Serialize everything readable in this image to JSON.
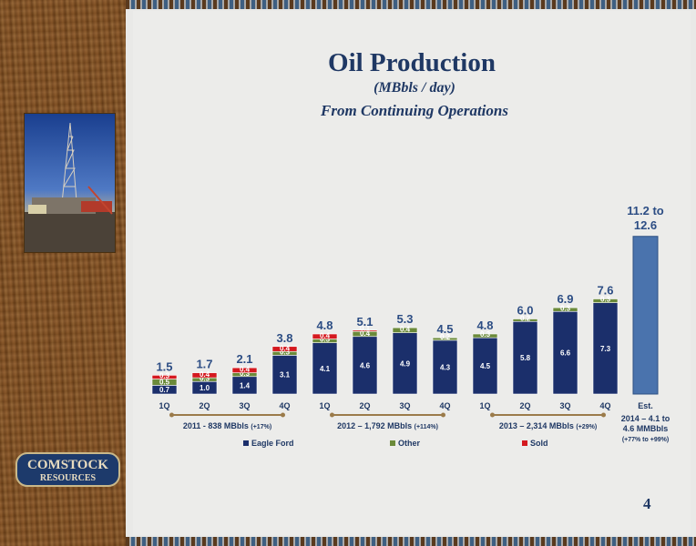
{
  "title": "Oil Production",
  "units": "(MBbls / day)",
  "subtitle": "From Continuing Operations",
  "page_number": "4",
  "logo_text": "COMSTOCK RESOURCES",
  "colors": {
    "eagle_ford": "#1b2f6b",
    "other": "#6b8a3a",
    "sold": "#d4191f",
    "estimate": "#4a73ad",
    "title": "#1f3864",
    "timeline": "#9b7b4a"
  },
  "chart_data": {
    "type": "bar",
    "stacked": true,
    "ylim": [
      0,
      13
    ],
    "categories": [
      "1Q",
      "2Q",
      "3Q",
      "4Q",
      "1Q",
      "2Q",
      "3Q",
      "4Q",
      "1Q",
      "2Q",
      "3Q",
      "4Q",
      "Est."
    ],
    "series": [
      {
        "name": "Eagle Ford",
        "values": [
          0.7,
          1.0,
          1.4,
          3.1,
          4.1,
          4.6,
          4.9,
          4.3,
          4.5,
          5.8,
          6.6,
          7.3,
          null
        ]
      },
      {
        "name": "Other",
        "values": [
          0.5,
          0.3,
          0.3,
          0.3,
          0.3,
          0.4,
          0.4,
          0.2,
          0.3,
          0.2,
          0.3,
          0.3,
          null
        ]
      },
      {
        "name": "Sold",
        "values": [
          0.3,
          0.4,
          0.4,
          0.4,
          0.4,
          0.1,
          null,
          null,
          null,
          null,
          null,
          null,
          null
        ]
      }
    ],
    "totals": [
      "1.5",
      "1.7",
      "2.1",
      "3.8",
      "4.8",
      "5.1",
      "5.3",
      "4.5",
      "4.8",
      "6.0",
      "6.9",
      "7.6",
      "11.2 to 12.6"
    ],
    "estimate": {
      "low": 11.2,
      "high": 12.6
    },
    "year_groups": [
      {
        "label": "2011 - 838 MBbls",
        "change": "(+17%)",
        "start": 0,
        "end": 3
      },
      {
        "label": "2012 – 1,792 MBbls",
        "change": "(+114%)",
        "start": 4,
        "end": 7
      },
      {
        "label": "2013 – 2,314 MBbls",
        "change": "(+29%)",
        "start": 8,
        "end": 11
      }
    ],
    "estimate_note": [
      "2014 – 4.1 to",
      "4.6 MMBbls",
      "(+77% to +99%)"
    ],
    "legend": [
      "Eagle Ford",
      "Other",
      "Sold"
    ]
  }
}
